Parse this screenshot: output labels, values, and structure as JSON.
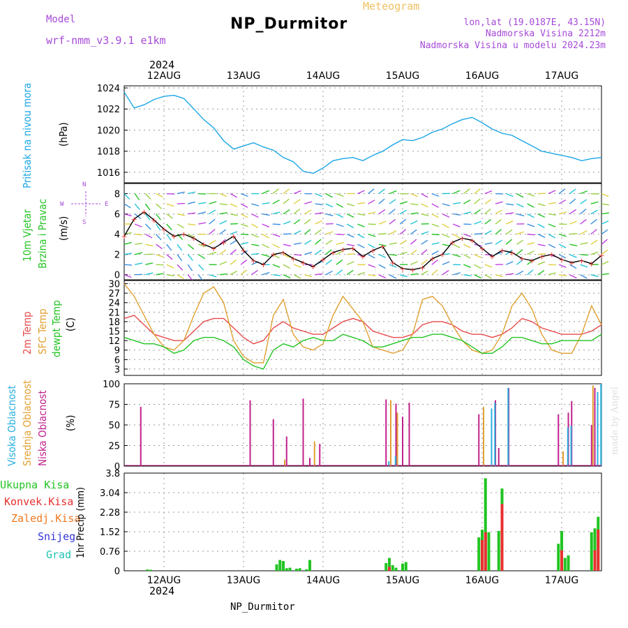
{
  "header": {
    "model_label": "Model",
    "model_name": "wrf-nmm_v3.9.1  e1km",
    "meteogram": "Meteogram",
    "station": "NP_Durmitor",
    "coords": "lon,lat (19.0187E, 43.15N)",
    "altitude": "Nadmorska Visina 2212m",
    "model_altitude": "Nadmorska Visina u modelu 2024.23m",
    "year_top": "2024",
    "year_bottom": "2024",
    "footer": "NP_Durmitor",
    "watermark": "made by Angel"
  },
  "days": [
    "12AUG",
    "13AUG",
    "14AUG",
    "15AUG",
    "16AUG",
    "17AUG"
  ],
  "colors": {
    "pressure": "#1aa6e6",
    "temp2m": "#e84a4a",
    "sfc": "#e0a030",
    "dewpt": "#22c422",
    "high": "#2ab0e0",
    "mid": "#e0a030",
    "low": "#c0208a",
    "total": "#22c422",
    "conv": "#e83030",
    "frozen": "#f07820",
    "snow": "#3333dd",
    "graupel": "#22c4b4",
    "wind_axis": "#a64ad8"
  },
  "labels": {
    "pressure_title": "Pritisak na nivou mora",
    "pressure_unit": "(hPa)",
    "wind_title1": "10m Vjetar",
    "wind_title2": "Brzina i Pravac",
    "wind_unit": "(m/s)",
    "compass_n": "N",
    "compass_s": "S",
    "compass_w": "W",
    "compass_e": "E",
    "temp_2m": "2m Temp",
    "temp_sfc": "SFC Temp",
    "temp_dew": "dewpt Temp",
    "temp_unit": "(C)",
    "cloud_high": "Visoka Oblacnost",
    "cloud_mid": "Srednja Oblacnost",
    "cloud_low": "Niska Oblacnost",
    "cloud_unit": "(%)",
    "precip_total": "Ukupna Kisa",
    "precip_conv": "Konvek.Kisa",
    "precip_frozen": "Zaledj.Kisa",
    "precip_snow": "Snijeg",
    "precip_graupel": "Grad",
    "precip_unit": "1hr Precip (mm)"
  },
  "chart_data": [
    {
      "type": "line",
      "name": "pressure",
      "ylabel": "(hPa)",
      "ylim": [
        1015,
        1024.2
      ],
      "yticks": [
        1016,
        1018,
        1020,
        1022,
        1024
      ],
      "x_hours": [
        0,
        3,
        6,
        9,
        12,
        15,
        18,
        21,
        24,
        27,
        30,
        33,
        36,
        39,
        42,
        45,
        48,
        51,
        54,
        57,
        60,
        63,
        66,
        69,
        72,
        75,
        78,
        81,
        84,
        87,
        90,
        93,
        96,
        99,
        102,
        105,
        108,
        111,
        114,
        117,
        120,
        123,
        126,
        129,
        132,
        135,
        138,
        141,
        144
      ],
      "series": [
        {
          "values": [
            1023.6,
            1022.1,
            1022.4,
            1022.9,
            1023.2,
            1023.3,
            1023.0,
            1022.0,
            1021.0,
            1020.2,
            1019.0,
            1018.2,
            1018.5,
            1018.8,
            1018.4,
            1018.1,
            1017.4,
            1017.0,
            1016.1,
            1015.9,
            1016.4,
            1017.1,
            1017.3,
            1017.4,
            1017.1,
            1017.6,
            1018.0,
            1018.6,
            1019.1,
            1019.0,
            1019.3,
            1019.8,
            1020.1,
            1020.6,
            1021.0,
            1021.2,
            1020.7,
            1020.1,
            1019.7,
            1019.5,
            1019.0,
            1018.5,
            1018.0,
            1017.8,
            1017.6,
            1017.4,
            1017.1,
            1017.3,
            1017.4
          ]
        }
      ]
    },
    {
      "type": "line",
      "name": "wind",
      "ylabel": "(m/s)",
      "ylim": [
        -0.5,
        9
      ],
      "yticks": [
        0,
        2,
        4,
        6,
        8
      ],
      "x_hours": [
        0,
        3,
        6,
        9,
        12,
        15,
        18,
        21,
        24,
        27,
        30,
        33,
        36,
        39,
        42,
        45,
        48,
        51,
        54,
        57,
        60,
        63,
        66,
        69,
        72,
        75,
        78,
        81,
        84,
        87,
        90,
        93,
        96,
        99,
        102,
        105,
        108,
        111,
        114,
        117,
        120,
        123,
        126,
        129,
        132,
        135,
        138,
        141,
        144
      ],
      "series": [
        {
          "values": [
            3.8,
            5.5,
            6.2,
            5.4,
            4.5,
            3.8,
            4.0,
            3.6,
            3.0,
            2.6,
            3.2,
            3.8,
            2.4,
            1.4,
            1.0,
            2.0,
            2.2,
            1.6,
            1.2,
            0.8,
            1.5,
            2.2,
            2.5,
            2.6,
            1.8,
            2.4,
            2.8,
            1.2,
            0.6,
            0.5,
            0.7,
            1.6,
            2.0,
            3.2,
            3.6,
            3.4,
            2.6,
            1.8,
            2.4,
            2.2,
            1.6,
            1.4,
            1.8,
            2.0,
            1.5,
            1.2,
            1.4,
            1.1,
            1.9
          ]
        }
      ]
    },
    {
      "type": "line",
      "name": "temperature",
      "ylabel": "(C)",
      "ylim": [
        1,
        31
      ],
      "yticks": [
        3,
        6,
        9,
        12,
        15,
        18,
        21,
        24,
        27,
        30
      ],
      "x_hours": [
        0,
        3,
        6,
        9,
        12,
        15,
        18,
        21,
        24,
        27,
        30,
        33,
        36,
        39,
        42,
        45,
        48,
        51,
        54,
        57,
        60,
        63,
        66,
        69,
        72,
        75,
        78,
        81,
        84,
        87,
        90,
        93,
        96,
        99,
        102,
        105,
        108,
        111,
        114,
        117,
        120,
        123,
        126,
        129,
        132,
        135,
        138,
        141,
        144
      ],
      "series": [
        {
          "name": "2m Temp",
          "values": [
            19,
            20,
            17,
            14,
            13,
            12,
            12,
            15,
            18,
            19,
            19,
            16,
            13,
            11,
            12,
            16,
            18,
            16,
            15,
            14,
            14,
            16,
            18,
            19,
            18,
            15,
            14,
            13,
            13,
            14,
            17,
            18,
            18,
            17,
            15,
            14,
            14,
            13,
            14,
            16,
            19,
            18,
            16,
            15,
            14,
            14,
            14,
            15,
            17
          ]
        },
        {
          "name": "SFC Temp",
          "values": [
            30,
            26,
            20,
            14,
            10,
            9,
            12,
            20,
            27,
            29,
            24,
            12,
            7,
            5,
            5,
            20,
            25,
            14,
            10,
            9,
            11,
            20,
            26,
            22,
            18,
            10,
            9,
            8,
            9,
            14,
            25,
            26,
            23,
            17,
            12,
            9,
            8,
            9,
            14,
            23,
            27,
            22,
            14,
            9,
            8,
            8,
            14,
            23,
            17
          ]
        },
        {
          "name": "dewpt Temp",
          "values": [
            13,
            12,
            11,
            11,
            10,
            8,
            9,
            12,
            13,
            13,
            12,
            10,
            6,
            4,
            3,
            9,
            11,
            10,
            12,
            13,
            12,
            12,
            14,
            13,
            12,
            10,
            10,
            11,
            12,
            13,
            13,
            14,
            14,
            13,
            12,
            10,
            8,
            8,
            10,
            13,
            13,
            12,
            11,
            11,
            12,
            12,
            12,
            12,
            14
          ]
        }
      ]
    },
    {
      "type": "bar",
      "name": "cloud_cover",
      "ylabel": "(%)",
      "ylim": [
        0,
        100
      ],
      "yticks": [
        0,
        25,
        50,
        75,
        100
      ],
      "series": [
        {
          "name": "Niska Oblacnost",
          "x_hours": [
            5,
            38,
            45,
            49,
            54,
            56,
            59,
            79,
            82,
            84,
            86,
            107,
            112,
            113,
            116,
            116,
            131,
            134,
            135,
            141,
            142
          ],
          "values": [
            72,
            80,
            57,
            36,
            82,
            10,
            27,
            81,
            76,
            60,
            77,
            63,
            80,
            22,
            95,
            5,
            63,
            65,
            79,
            50,
            95
          ]
        },
        {
          "name": "Srednja Oblacnost",
          "x_hours": [
            48,
            57,
            80,
            82,
            108,
            132,
            141
          ],
          "values": [
            8,
            30,
            80,
            65,
            72,
            18,
            98
          ]
        },
        {
          "name": "Visoka Oblacnost",
          "x_hours": [
            79,
            81,
            110,
            111,
            115,
            133,
            134,
            142,
            143
          ],
          "values": [
            6,
            12,
            70,
            77,
            95,
            47,
            49,
            90,
            100
          ]
        }
      ]
    },
    {
      "type": "bar",
      "name": "precipitation",
      "ylabel": "1hr Precip (mm)",
      "ylim": [
        0,
        3.8
      ],
      "yticks": [
        0,
        0.76,
        1.52,
        2.28,
        3.04,
        3.8
      ],
      "series": [
        {
          "name": "Ukupna Kisa",
          "x_hours": [
            7,
            8,
            46,
            47,
            48,
            49,
            50,
            52,
            53,
            55,
            56,
            79,
            80,
            81,
            82,
            84,
            85,
            107,
            108,
            109,
            110,
            113,
            114,
            131,
            132,
            133,
            134,
            141,
            142,
            143
          ],
          "values": [
            0.05,
            0.04,
            0.25,
            0.42,
            0.38,
            0.1,
            0.12,
            0.08,
            0.1,
            0.06,
            0.42,
            0.3,
            0.5,
            0.22,
            0.12,
            0.28,
            0.34,
            1.3,
            1.6,
            3.6,
            1.5,
            1.55,
            3.2,
            1.05,
            1.55,
            0.5,
            0.6,
            1.5,
            1.65,
            2.1
          ]
        },
        {
          "name": "Konvek.Kisa",
          "x_hours": [
            80,
            108,
            109,
            114,
            132,
            142,
            143
          ],
          "values": [
            0.15,
            1.2,
            1.5,
            2.6,
            0.8,
            0.8,
            1.6
          ]
        }
      ]
    }
  ]
}
